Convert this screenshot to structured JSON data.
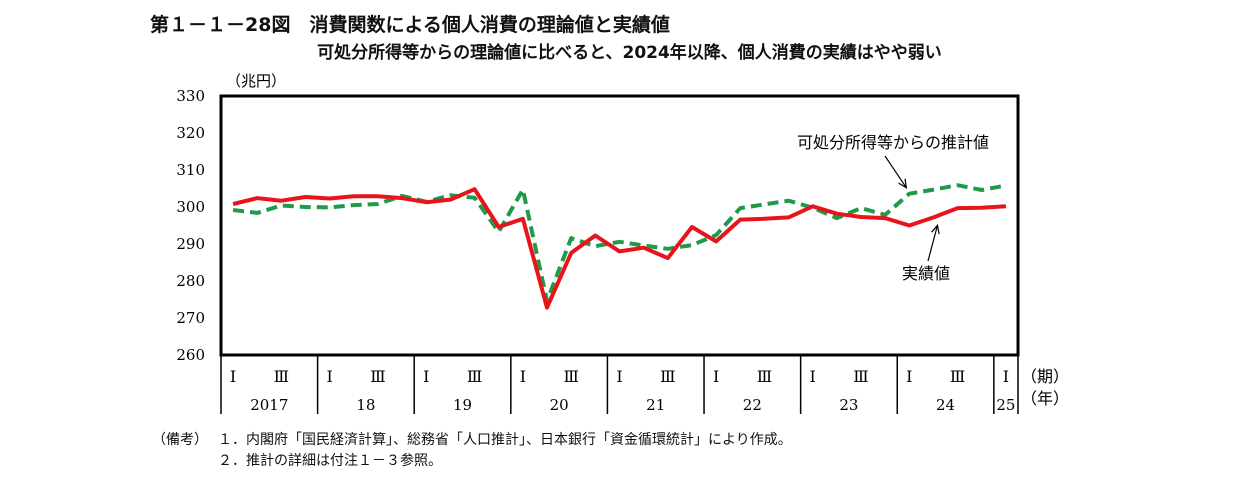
{
  "title": "第１－１－28図　消費関数による個人消費の理論値と実績値",
  "subtitle": "可処分所得等からの理論値に比べると、2024年以降、個人消費の実績はやや弱い",
  "chart_data": {
    "type": "line",
    "ylabel": "（兆円）",
    "ylim": [
      260,
      330
    ],
    "yticks": [
      260,
      270,
      280,
      290,
      300,
      310,
      320,
      330
    ],
    "x_quarter_marks": [
      "Ⅰ",
      "Ⅲ"
    ],
    "x_period_label": "（期）",
    "x_year_unit_label": "（年）",
    "years": [
      "2017",
      "18",
      "19",
      "20",
      "21",
      "22",
      "23",
      "24",
      "25"
    ],
    "x_quarters": [
      "2017Q1",
      "2017Q2",
      "2017Q3",
      "2017Q4",
      "2018Q1",
      "2018Q2",
      "2018Q3",
      "2018Q4",
      "2019Q1",
      "2019Q2",
      "2019Q3",
      "2019Q4",
      "2020Q1",
      "2020Q2",
      "2020Q3",
      "2020Q4",
      "2021Q1",
      "2021Q2",
      "2021Q3",
      "2021Q4",
      "2022Q1",
      "2022Q2",
      "2022Q3",
      "2022Q4",
      "2023Q1",
      "2023Q2",
      "2023Q3",
      "2023Q4",
      "2024Q1",
      "2024Q2",
      "2024Q3",
      "2024Q4",
      "2025Q1"
    ],
    "series": [
      {
        "name": "実績値",
        "color": "#e8141c",
        "style": "solid",
        "values": [
          300.8,
          302.4,
          301.7,
          302.7,
          302.3,
          302.9,
          302.9,
          302.4,
          301.3,
          302.0,
          304.8,
          294.6,
          296.8,
          272.8,
          287.6,
          292.3,
          288.0,
          289.0,
          286.2,
          294.6,
          290.7,
          296.6,
          296.8,
          297.2,
          300.2,
          298.2,
          297.3,
          297.0,
          295.0,
          297.2,
          299.7,
          299.8,
          300.2
        ]
      },
      {
        "name": "可処分所得等からの推計値",
        "color": "#1f9a48",
        "style": "dashed",
        "values": [
          299.2,
          298.4,
          300.4,
          300.0,
          299.9,
          300.5,
          300.8,
          303.0,
          301.4,
          303.2,
          302.5,
          293.3,
          304.7,
          274.6,
          291.6,
          289.4,
          290.6,
          289.6,
          288.7,
          289.7,
          292.4,
          299.7,
          300.7,
          301.7,
          299.8,
          297.0,
          299.7,
          297.9,
          303.6,
          304.7,
          305.9,
          304.6,
          305.8
        ]
      }
    ],
    "annotations": [
      {
        "text": "可処分所得等からの推計値",
        "points_to": "可処分所得等からの推計値"
      },
      {
        "text": "実績値",
        "points_to": "実績値"
      }
    ],
    "grid": false,
    "legend": "none"
  },
  "notes": {
    "label": "（備考）",
    "items": [
      "１．内閣府「国民経済計算」、総務省「人口推計」、日本銀行「資金循環統計」により作成。",
      "２．推計の詳細は付注１－３参照。"
    ]
  }
}
